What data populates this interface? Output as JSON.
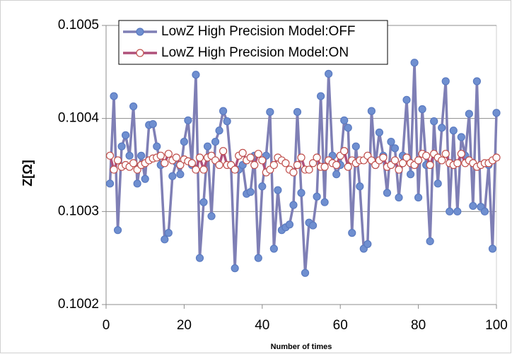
{
  "chart_data": {
    "type": "line",
    "xlabel": "Number of times",
    "ylabel": "Z[Ω]",
    "x": [
      1,
      2,
      3,
      4,
      5,
      6,
      7,
      8,
      9,
      10,
      11,
      12,
      13,
      14,
      15,
      16,
      17,
      18,
      19,
      20,
      21,
      22,
      23,
      24,
      25,
      26,
      27,
      28,
      29,
      30,
      31,
      32,
      33,
      34,
      35,
      36,
      37,
      38,
      39,
      40,
      41,
      42,
      43,
      44,
      45,
      46,
      47,
      48,
      49,
      50,
      51,
      52,
      53,
      54,
      55,
      56,
      57,
      58,
      59,
      60,
      61,
      62,
      63,
      64,
      65,
      66,
      67,
      68,
      69,
      70,
      71,
      72,
      73,
      74,
      75,
      76,
      77,
      78,
      79,
      80,
      81,
      82,
      83,
      84,
      85,
      86,
      87,
      88,
      89,
      90,
      91,
      92,
      93,
      94,
      95,
      96,
      97,
      98,
      99,
      100
    ],
    "series": [
      {
        "name": "LowZ High Precision Model:OFF",
        "color": "#7f7fb5",
        "marker_face": "#6f8fd0",
        "marker_edge": "#5a7ac0",
        "values": [
          0.10033,
          0.100424,
          0.10028,
          0.10037,
          0.100382,
          0.10036,
          0.100413,
          0.10033,
          0.10036,
          0.100335,
          0.100393,
          0.100394,
          0.10037,
          0.10035,
          0.10027,
          0.100277,
          0.100338,
          0.100353,
          0.10034,
          0.100375,
          0.100398,
          0.10035,
          0.100447,
          0.10025,
          0.10031,
          0.10037,
          0.100295,
          0.100375,
          0.100387,
          0.100408,
          0.100397,
          0.10035,
          0.100239,
          0.100345,
          0.10035,
          0.100319,
          0.100321,
          0.10036,
          0.10025,
          0.100327,
          0.10036,
          0.100407,
          0.10026,
          0.100323,
          0.10028,
          0.100283,
          0.100286,
          0.100307,
          0.100407,
          0.10032,
          0.100234,
          0.100288,
          0.100285,
          0.100316,
          0.100424,
          0.10031,
          0.100448,
          0.10036,
          0.10034,
          0.10035,
          0.100398,
          0.10039,
          0.100277,
          0.10037,
          0.100327,
          0.10026,
          0.100265,
          0.100408,
          0.10035,
          0.100385,
          0.10036,
          0.10032,
          0.100375,
          0.100368,
          0.100315,
          0.10036,
          0.10042,
          0.10034,
          0.10046,
          0.100315,
          0.10041,
          0.10035,
          0.100268,
          0.100397,
          0.10033,
          0.10039,
          0.10044,
          0.1003,
          0.100387,
          0.1003,
          0.10038,
          0.10036,
          0.100405,
          0.100306,
          0.10044,
          0.100305,
          0.1003,
          0.10035,
          0.10026,
          0.100406
        ]
      },
      {
        "name": "LowZ High Precision Model:ON",
        "color": "#b0507a",
        "marker_face": "#ffffff",
        "marker_edge": "#c0504d",
        "values": [
          0.10036,
          0.100345,
          0.100355,
          0.100348,
          0.10035,
          0.100348,
          0.100352,
          0.100345,
          0.10035,
          0.100352,
          0.100355,
          0.100357,
          0.100358,
          0.10036,
          0.100352,
          0.100362,
          0.100355,
          0.100358,
          0.10035,
          0.100356,
          0.100354,
          0.100352,
          0.100345,
          0.100358,
          0.100345,
          0.100358,
          0.10036,
          0.100355,
          0.10035,
          0.100365,
          0.10035,
          0.10035,
          0.100345,
          0.10036,
          0.100363,
          0.100355,
          0.100358,
          0.10035,
          0.100362,
          0.100355,
          0.100342,
          0.100345,
          0.10035,
          0.100358,
          0.100355,
          0.100352,
          0.100345,
          0.100342,
          0.10035,
          0.100358,
          0.100345,
          0.100345,
          0.100352,
          0.100358,
          0.100348,
          0.100348,
          0.100355,
          0.100352,
          0.10035,
          0.10036,
          0.100365,
          0.100348,
          0.100355,
          0.100352,
          0.100355,
          0.100355,
          0.10036,
          0.100355,
          0.10035,
          0.100355,
          0.100358,
          0.100348,
          0.10035,
          0.100355,
          0.100345,
          0.100352,
          0.100358,
          0.100352,
          0.10035,
          0.100355,
          0.100362,
          0.10036,
          0.10035,
          0.100362,
          0.100358,
          0.100355,
          0.100362,
          0.100352,
          0.10035,
          0.100352,
          0.100362,
          0.100352,
          0.100355,
          0.100352,
          0.100348,
          0.10035,
          0.100352,
          0.100352,
          0.100355,
          0.100358
        ]
      }
    ],
    "xlim": [
      0,
      100
    ],
    "xticks": [
      0,
      20,
      40,
      60,
      80,
      100
    ],
    "ylim": [
      0.1002,
      0.1005
    ],
    "yticks": [
      0.1002,
      0.1003,
      0.1004,
      0.1005
    ],
    "grid": true,
    "legend": "upper left"
  }
}
